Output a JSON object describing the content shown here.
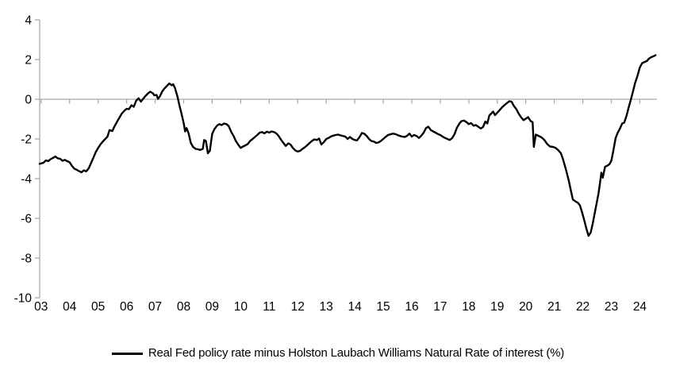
{
  "chart_data": {
    "type": "line",
    "grid": false,
    "colors": {
      "axis": "#a9a9a9",
      "series": "#000000",
      "text": "#000000",
      "background": "#ffffff"
    },
    "legend": {
      "position": "bottom-center",
      "items": [
        {
          "label": "Real Fed policy rate minus Holston Laubach Williams Natural Rate of interest (%)",
          "color": "#000000",
          "marker": "line"
        }
      ]
    },
    "x_axis": {
      "range": [
        2.95,
        24.6
      ],
      "axis_at_y": 0,
      "tick_values": [
        3,
        4,
        5,
        6,
        7,
        8,
        9,
        10,
        11,
        12,
        13,
        14,
        15,
        16,
        17,
        18,
        19,
        20,
        21,
        22,
        23,
        24
      ],
      "tick_labels": [
        "03",
        "04",
        "05",
        "06",
        "07",
        "08",
        "09",
        "10",
        "11",
        "12",
        "13",
        "14",
        "15",
        "16",
        "17",
        "18",
        "19",
        "20",
        "21",
        "22",
        "23",
        "24"
      ]
    },
    "y_axis": {
      "range": [
        -10,
        4
      ],
      "tick_values": [
        4,
        2,
        0,
        -2,
        -4,
        -6,
        -8,
        -10
      ]
    },
    "series": [
      {
        "name": "Real Fed policy rate minus Holston Laubach Williams Natural Rate of interest (%)",
        "points": [
          [
            2.95,
            -3.25
          ],
          [
            3.08,
            -3.2
          ],
          [
            3.17,
            -3.08
          ],
          [
            3.25,
            -3.12
          ],
          [
            3.33,
            -3.02
          ],
          [
            3.42,
            -2.95
          ],
          [
            3.5,
            -2.88
          ],
          [
            3.58,
            -2.97
          ],
          [
            3.67,
            -3.0
          ],
          [
            3.75,
            -3.1
          ],
          [
            3.83,
            -3.05
          ],
          [
            3.92,
            -3.12
          ],
          [
            4.0,
            -3.17
          ],
          [
            4.08,
            -3.35
          ],
          [
            4.17,
            -3.5
          ],
          [
            4.25,
            -3.55
          ],
          [
            4.33,
            -3.62
          ],
          [
            4.42,
            -3.68
          ],
          [
            4.5,
            -3.58
          ],
          [
            4.58,
            -3.63
          ],
          [
            4.67,
            -3.48
          ],
          [
            4.75,
            -3.22
          ],
          [
            4.83,
            -2.95
          ],
          [
            4.92,
            -2.65
          ],
          [
            5.0,
            -2.45
          ],
          [
            5.08,
            -2.28
          ],
          [
            5.17,
            -2.12
          ],
          [
            5.25,
            -2.0
          ],
          [
            5.33,
            -1.88
          ],
          [
            5.4,
            -1.55
          ],
          [
            5.5,
            -1.6
          ],
          [
            5.58,
            -1.35
          ],
          [
            5.67,
            -1.12
          ],
          [
            5.75,
            -0.92
          ],
          [
            5.83,
            -0.72
          ],
          [
            5.92,
            -0.58
          ],
          [
            6.0,
            -0.48
          ],
          [
            6.08,
            -0.5
          ],
          [
            6.17,
            -0.3
          ],
          [
            6.25,
            -0.38
          ],
          [
            6.33,
            -0.08
          ],
          [
            6.42,
            0.05
          ],
          [
            6.5,
            -0.12
          ],
          [
            6.58,
            0.02
          ],
          [
            6.67,
            0.18
          ],
          [
            6.75,
            0.3
          ],
          [
            6.83,
            0.38
          ],
          [
            6.92,
            0.3
          ],
          [
            6.97,
            0.2
          ],
          [
            7.05,
            0.22
          ],
          [
            7.1,
            0.02
          ],
          [
            7.17,
            0.15
          ],
          [
            7.25,
            0.4
          ],
          [
            7.33,
            0.55
          ],
          [
            7.42,
            0.68
          ],
          [
            7.5,
            0.8
          ],
          [
            7.58,
            0.7
          ],
          [
            7.63,
            0.76
          ],
          [
            7.7,
            0.55
          ],
          [
            7.78,
            0.15
          ],
          [
            7.85,
            -0.3
          ],
          [
            7.92,
            -0.7
          ],
          [
            8.0,
            -1.2
          ],
          [
            8.05,
            -1.62
          ],
          [
            8.1,
            -1.45
          ],
          [
            8.17,
            -1.7
          ],
          [
            8.25,
            -2.2
          ],
          [
            8.33,
            -2.4
          ],
          [
            8.42,
            -2.5
          ],
          [
            8.5,
            -2.52
          ],
          [
            8.58,
            -2.55
          ],
          [
            8.67,
            -2.5
          ],
          [
            8.72,
            -2.05
          ],
          [
            8.78,
            -2.1
          ],
          [
            8.85,
            -2.72
          ],
          [
            8.92,
            -2.6
          ],
          [
            9.0,
            -1.75
          ],
          [
            9.08,
            -1.5
          ],
          [
            9.17,
            -1.33
          ],
          [
            9.25,
            -1.25
          ],
          [
            9.33,
            -1.3
          ],
          [
            9.42,
            -1.22
          ],
          [
            9.5,
            -1.25
          ],
          [
            9.58,
            -1.35
          ],
          [
            9.67,
            -1.65
          ],
          [
            9.75,
            -1.85
          ],
          [
            9.83,
            -2.1
          ],
          [
            9.92,
            -2.3
          ],
          [
            10.0,
            -2.45
          ],
          [
            10.08,
            -2.38
          ],
          [
            10.17,
            -2.32
          ],
          [
            10.25,
            -2.25
          ],
          [
            10.33,
            -2.1
          ],
          [
            10.42,
            -2.0
          ],
          [
            10.5,
            -1.9
          ],
          [
            10.58,
            -1.8
          ],
          [
            10.67,
            -1.68
          ],
          [
            10.75,
            -1.65
          ],
          [
            10.83,
            -1.72
          ],
          [
            10.92,
            -1.63
          ],
          [
            11.0,
            -1.68
          ],
          [
            11.08,
            -1.62
          ],
          [
            11.17,
            -1.65
          ],
          [
            11.25,
            -1.72
          ],
          [
            11.33,
            -1.85
          ],
          [
            11.42,
            -2.05
          ],
          [
            11.5,
            -2.2
          ],
          [
            11.58,
            -2.35
          ],
          [
            11.67,
            -2.22
          ],
          [
            11.75,
            -2.28
          ],
          [
            11.83,
            -2.45
          ],
          [
            11.92,
            -2.58
          ],
          [
            12.0,
            -2.63
          ],
          [
            12.08,
            -2.6
          ],
          [
            12.17,
            -2.5
          ],
          [
            12.25,
            -2.42
          ],
          [
            12.33,
            -2.32
          ],
          [
            12.42,
            -2.2
          ],
          [
            12.5,
            -2.1
          ],
          [
            12.58,
            -2.02
          ],
          [
            12.67,
            -2.05
          ],
          [
            12.75,
            -1.98
          ],
          [
            12.83,
            -2.28
          ],
          [
            12.92,
            -2.15
          ],
          [
            13.0,
            -2.0
          ],
          [
            13.08,
            -1.95
          ],
          [
            13.17,
            -1.87
          ],
          [
            13.25,
            -1.83
          ],
          [
            13.33,
            -1.8
          ],
          [
            13.42,
            -1.78
          ],
          [
            13.5,
            -1.82
          ],
          [
            13.58,
            -1.85
          ],
          [
            13.67,
            -1.88
          ],
          [
            13.75,
            -2.0
          ],
          [
            13.83,
            -1.9
          ],
          [
            13.92,
            -2.0
          ],
          [
            14.0,
            -2.05
          ],
          [
            14.08,
            -2.07
          ],
          [
            14.17,
            -1.9
          ],
          [
            14.25,
            -1.7
          ],
          [
            14.33,
            -1.73
          ],
          [
            14.42,
            -1.85
          ],
          [
            14.5,
            -2.0
          ],
          [
            14.58,
            -2.1
          ],
          [
            14.67,
            -2.13
          ],
          [
            14.75,
            -2.2
          ],
          [
            14.83,
            -2.18
          ],
          [
            14.92,
            -2.1
          ],
          [
            15.0,
            -2.0
          ],
          [
            15.08,
            -1.9
          ],
          [
            15.17,
            -1.8
          ],
          [
            15.25,
            -1.77
          ],
          [
            15.33,
            -1.73
          ],
          [
            15.42,
            -1.75
          ],
          [
            15.5,
            -1.8
          ],
          [
            15.58,
            -1.85
          ],
          [
            15.67,
            -1.88
          ],
          [
            15.75,
            -1.9
          ],
          [
            15.83,
            -1.85
          ],
          [
            15.92,
            -1.73
          ],
          [
            16.0,
            -1.88
          ],
          [
            16.08,
            -1.8
          ],
          [
            16.17,
            -1.85
          ],
          [
            16.25,
            -1.95
          ],
          [
            16.33,
            -1.85
          ],
          [
            16.42,
            -1.68
          ],
          [
            16.5,
            -1.45
          ],
          [
            16.58,
            -1.38
          ],
          [
            16.67,
            -1.55
          ],
          [
            16.75,
            -1.62
          ],
          [
            16.83,
            -1.68
          ],
          [
            16.92,
            -1.75
          ],
          [
            17.0,
            -1.8
          ],
          [
            17.08,
            -1.88
          ],
          [
            17.17,
            -1.95
          ],
          [
            17.25,
            -2.0
          ],
          [
            17.33,
            -2.05
          ],
          [
            17.42,
            -1.95
          ],
          [
            17.5,
            -1.75
          ],
          [
            17.58,
            -1.45
          ],
          [
            17.67,
            -1.22
          ],
          [
            17.75,
            -1.1
          ],
          [
            17.83,
            -1.07
          ],
          [
            17.92,
            -1.15
          ],
          [
            18.0,
            -1.25
          ],
          [
            18.08,
            -1.2
          ],
          [
            18.17,
            -1.33
          ],
          [
            18.25,
            -1.3
          ],
          [
            18.33,
            -1.38
          ],
          [
            18.42,
            -1.47
          ],
          [
            18.5,
            -1.4
          ],
          [
            18.58,
            -1.12
          ],
          [
            18.65,
            -1.22
          ],
          [
            18.72,
            -0.82
          ],
          [
            18.8,
            -0.7
          ],
          [
            18.85,
            -0.62
          ],
          [
            18.92,
            -0.8
          ],
          [
            19.0,
            -0.67
          ],
          [
            19.08,
            -0.55
          ],
          [
            19.17,
            -0.4
          ],
          [
            19.25,
            -0.3
          ],
          [
            19.33,
            -0.2
          ],
          [
            19.42,
            -0.1
          ],
          [
            19.5,
            -0.12
          ],
          [
            19.58,
            -0.33
          ],
          [
            19.67,
            -0.5
          ],
          [
            19.75,
            -0.72
          ],
          [
            19.83,
            -0.9
          ],
          [
            19.92,
            -1.05
          ],
          [
            20.0,
            -0.98
          ],
          [
            20.08,
            -0.9
          ],
          [
            20.17,
            -1.1
          ],
          [
            20.24,
            -1.15
          ],
          [
            20.28,
            -2.4
          ],
          [
            20.35,
            -1.78
          ],
          [
            20.45,
            -1.85
          ],
          [
            20.55,
            -1.92
          ],
          [
            20.65,
            -2.05
          ],
          [
            20.75,
            -2.25
          ],
          [
            20.85,
            -2.38
          ],
          [
            20.95,
            -2.4
          ],
          [
            21.05,
            -2.45
          ],
          [
            21.15,
            -2.58
          ],
          [
            21.23,
            -2.72
          ],
          [
            21.3,
            -3.0
          ],
          [
            21.4,
            -3.5
          ],
          [
            21.5,
            -4.05
          ],
          [
            21.58,
            -4.6
          ],
          [
            21.65,
            -5.05
          ],
          [
            21.75,
            -5.15
          ],
          [
            21.83,
            -5.22
          ],
          [
            21.9,
            -5.35
          ],
          [
            21.97,
            -5.68
          ],
          [
            22.05,
            -6.1
          ],
          [
            22.12,
            -6.5
          ],
          [
            22.2,
            -6.88
          ],
          [
            22.28,
            -6.7
          ],
          [
            22.35,
            -6.25
          ],
          [
            22.45,
            -5.5
          ],
          [
            22.55,
            -4.75
          ],
          [
            22.6,
            -4.25
          ],
          [
            22.65,
            -3.7
          ],
          [
            22.7,
            -3.95
          ],
          [
            22.78,
            -3.4
          ],
          [
            22.85,
            -3.35
          ],
          [
            22.93,
            -3.28
          ],
          [
            23.0,
            -3.1
          ],
          [
            23.07,
            -2.6
          ],
          [
            23.15,
            -1.95
          ],
          [
            23.22,
            -1.7
          ],
          [
            23.3,
            -1.48
          ],
          [
            23.38,
            -1.22
          ],
          [
            23.45,
            -1.18
          ],
          [
            23.53,
            -0.85
          ],
          [
            23.6,
            -0.45
          ],
          [
            23.68,
            -0.05
          ],
          [
            23.75,
            0.35
          ],
          [
            23.83,
            0.8
          ],
          [
            23.92,
            1.2
          ],
          [
            24.0,
            1.6
          ],
          [
            24.08,
            1.82
          ],
          [
            24.17,
            1.88
          ],
          [
            24.25,
            1.93
          ],
          [
            24.32,
            2.05
          ],
          [
            24.4,
            2.12
          ],
          [
            24.5,
            2.18
          ],
          [
            24.55,
            2.22
          ]
        ]
      }
    ]
  }
}
